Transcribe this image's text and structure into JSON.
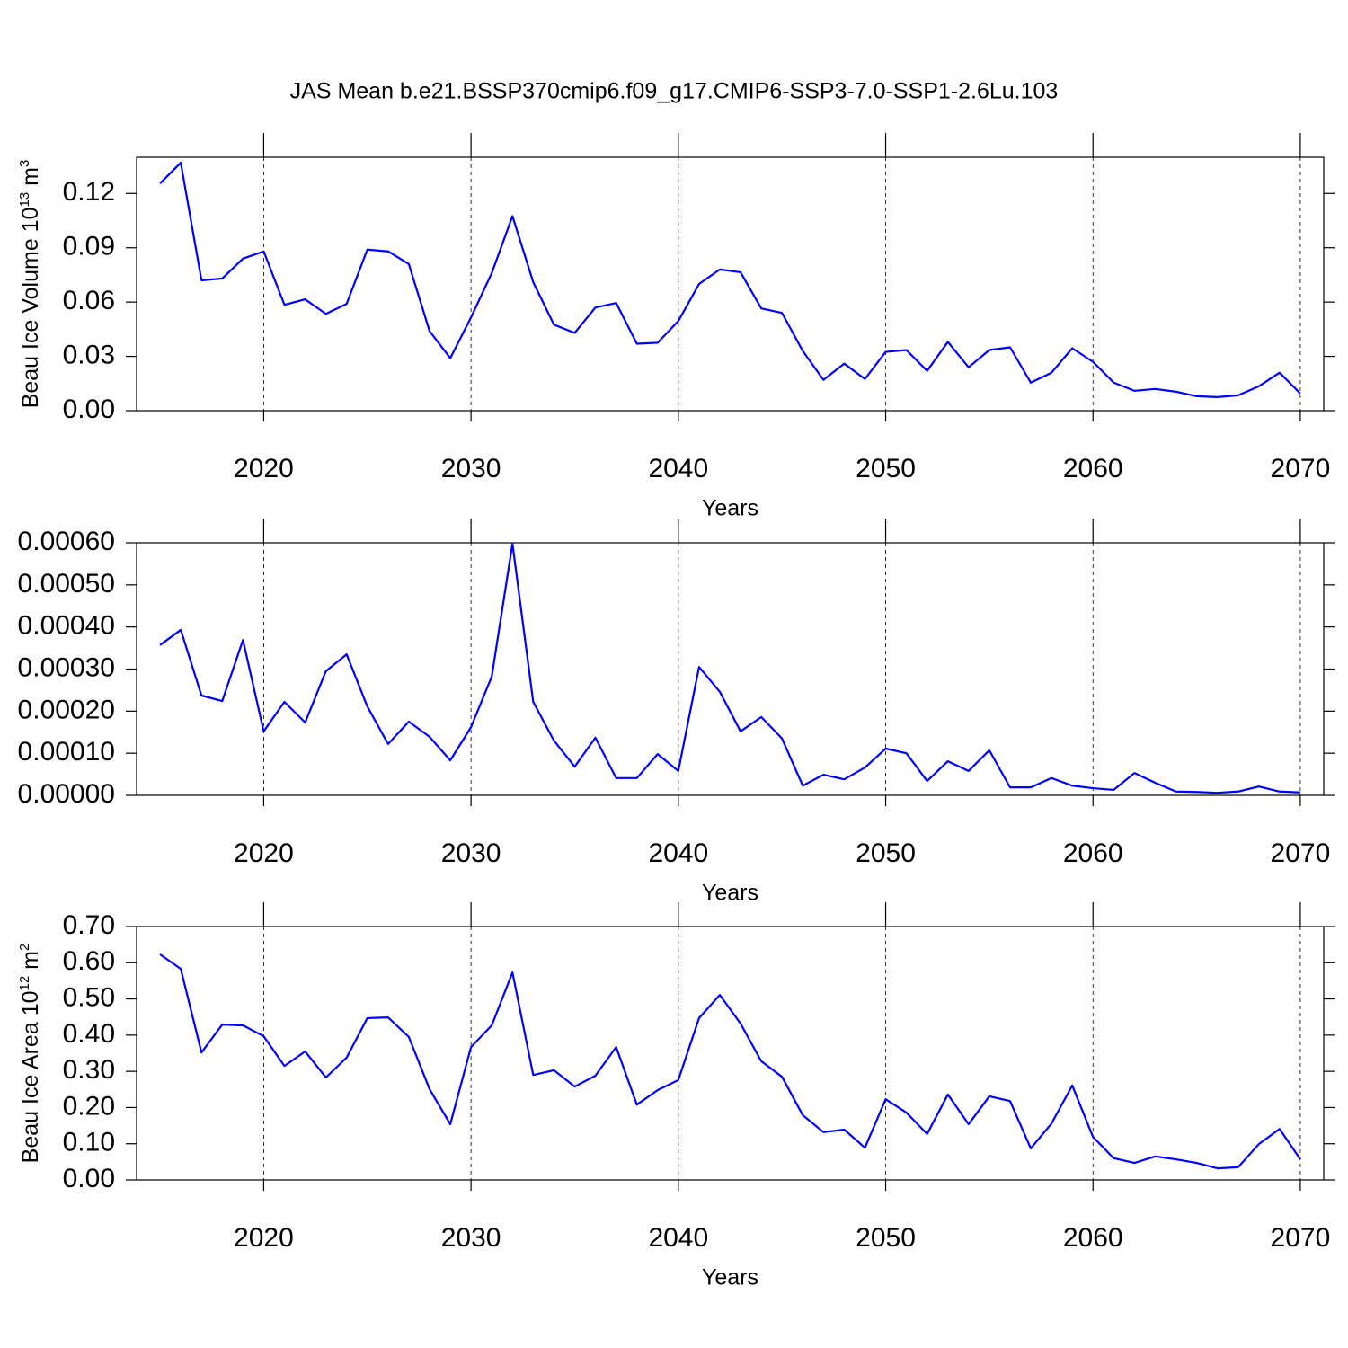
{
  "chart_data": [
    {
      "type": "line",
      "title": "JAS Mean b.e21.BSSP370cmip6.f09_g17.CMIP6-SSP3-7.0-SSP1-2.6Lu.103",
      "xlabel": "Years",
      "ylabel": {
        "base": "Beau Ice Volume 10",
        "exp": "13",
        "unit": " m",
        "unit_exp": "3"
      },
      "color": "#0000ff",
      "xgrid": true,
      "x": [
        2015,
        2016,
        2017,
        2018,
        2019,
        2020,
        2021,
        2022,
        2023,
        2024,
        2025,
        2026,
        2027,
        2028,
        2029,
        2030,
        2031,
        2032,
        2033,
        2034,
        2035,
        2036,
        2037,
        2038,
        2039,
        2040,
        2041,
        2042,
        2043,
        2044,
        2045,
        2046,
        2047,
        2048,
        2049,
        2050,
        2051,
        2052,
        2053,
        2054,
        2055,
        2056,
        2057,
        2058,
        2059,
        2060,
        2061,
        2062,
        2063,
        2064,
        2065,
        2066,
        2067,
        2068,
        2069,
        2070
      ],
      "values": [
        0.1255,
        0.137,
        0.072,
        0.073,
        0.084,
        0.088,
        0.0585,
        0.0615,
        0.0535,
        0.059,
        0.089,
        0.088,
        0.081,
        0.044,
        0.029,
        0.0515,
        0.076,
        0.1075,
        0.071,
        0.0475,
        0.043,
        0.057,
        0.0595,
        0.037,
        0.0375,
        0.0495,
        0.07,
        0.078,
        0.0765,
        0.0565,
        0.054,
        0.033,
        0.017,
        0.026,
        0.0175,
        0.0325,
        0.0335,
        0.022,
        0.038,
        0.024,
        0.0335,
        0.035,
        0.0155,
        0.021,
        0.0345,
        0.027,
        0.0155,
        0.011,
        0.012,
        0.0105,
        0.008,
        0.0075,
        0.0085,
        0.0135,
        0.021,
        0.0095
      ],
      "xlim": [
        2013.87,
        2071.13
      ],
      "xticks": [
        2020,
        2030,
        2040,
        2050,
        2060,
        2070
      ],
      "ylim": [
        0,
        0.14
      ],
      "yticks": [
        {
          "value": 0,
          "label": "0.00"
        },
        0.03,
        0.06,
        0.09,
        0.12
      ]
    },
    {
      "type": "line",
      "xlabel": "Years",
      "color": "#0000ff",
      "xgrid": true,
      "x": [
        2015,
        2016,
        2017,
        2018,
        2019,
        2020,
        2021,
        2022,
        2023,
        2024,
        2025,
        2026,
        2027,
        2028,
        2029,
        2030,
        2031,
        2032,
        2033,
        2034,
        2035,
        2036,
        2037,
        2038,
        2039,
        2040,
        2041,
        2042,
        2043,
        2044,
        2045,
        2046,
        2047,
        2048,
        2049,
        2050,
        2051,
        2052,
        2053,
        2054,
        2055,
        2056,
        2057,
        2058,
        2059,
        2060,
        2061,
        2062,
        2063,
        2064,
        2065,
        2066,
        2067,
        2068,
        2069,
        2070
      ],
      "values": [
        0.000357,
        0.000393,
        0.000237,
        0.000224,
        0.000369,
        0.000152,
        0.000222,
        0.000173,
        0.000295,
        0.000335,
        0.000211,
        0.000122,
        0.000175,
        0.000139,
        8.3e-05,
        0.000162,
        0.000282,
        0.000598,
        0.000222,
        0.00013,
        6.8e-05,
        0.000137,
        4.1e-05,
        4.1e-05,
        9.8e-05,
        5.8e-05,
        0.000305,
        0.000246,
        0.000152,
        0.000186,
        0.000135,
        2.3e-05,
        4.9e-05,
        3.8e-05,
        6.6e-05,
        0.000111,
        0.0001,
        3.4e-05,
        8.1e-05,
        5.8e-05,
        0.000107,
        1.9e-05,
        1.9e-05,
        4.1e-05,
        2.3e-05,
        1.7e-05,
        1.3e-05,
        5.3e-05,
        3e-05,
        9e-06,
        8e-06,
        6e-06,
        9e-06,
        2.1e-05,
        9e-06,
        7e-06
      ],
      "xlim": [
        2013.87,
        2071.13
      ],
      "xticks": [
        2020,
        2030,
        2040,
        2050,
        2060,
        2070
      ],
      "ylim": [
        0,
        0.0006
      ],
      "yticks": [
        {
          "value": 0,
          "label": "0.00000"
        },
        {
          "value": 0.0001,
          "label": "0.00010"
        },
        {
          "value": 0.0002,
          "label": "0.00020"
        },
        {
          "value": 0.0003,
          "label": "0.00030"
        },
        {
          "value": 0.0004,
          "label": "0.00040"
        },
        {
          "value": 0.0005,
          "label": "0.00050"
        },
        {
          "value": 0.0006,
          "label": "0.00060"
        }
      ]
    },
    {
      "type": "line",
      "xlabel": "Years",
      "ylabel": {
        "base": "Beau Ice Area 10",
        "exp": "12",
        "unit": " m",
        "unit_exp": "2"
      },
      "color": "#0000ff",
      "xgrid": true,
      "x": [
        2015,
        2016,
        2017,
        2018,
        2019,
        2020,
        2021,
        2022,
        2023,
        2024,
        2025,
        2026,
        2027,
        2028,
        2029,
        2030,
        2031,
        2032,
        2033,
        2034,
        2035,
        2036,
        2037,
        2038,
        2039,
        2040,
        2041,
        2042,
        2043,
        2044,
        2045,
        2046,
        2047,
        2048,
        2049,
        2050,
        2051,
        2052,
        2053,
        2054,
        2055,
        2056,
        2057,
        2058,
        2059,
        2060,
        2061,
        2062,
        2063,
        2064,
        2065,
        2066,
        2067,
        2068,
        2069,
        2070
      ],
      "values": [
        0.623,
        0.583,
        0.352,
        0.429,
        0.427,
        0.397,
        0.315,
        0.355,
        0.283,
        0.338,
        0.447,
        0.449,
        0.395,
        0.251,
        0.154,
        0.367,
        0.427,
        0.573,
        0.29,
        0.303,
        0.258,
        0.288,
        0.367,
        0.208,
        0.248,
        0.276,
        0.447,
        0.511,
        0.432,
        0.328,
        0.285,
        0.179,
        0.132,
        0.139,
        0.089,
        0.223,
        0.186,
        0.127,
        0.236,
        0.154,
        0.231,
        0.218,
        0.087,
        0.156,
        0.261,
        0.119,
        0.06,
        0.047,
        0.065,
        0.057,
        0.047,
        0.032,
        0.035,
        0.099,
        0.141,
        0.057
      ],
      "xlim": [
        2013.87,
        2071.13
      ],
      "xticks": [
        2020,
        2030,
        2040,
        2050,
        2060,
        2070
      ],
      "ylim": [
        0,
        0.7
      ],
      "yticks": [
        {
          "value": 0,
          "label": "0.00"
        },
        {
          "value": 0.1,
          "label": "0.10"
        },
        {
          "value": 0.2,
          "label": "0.20"
        },
        {
          "value": 0.3,
          "label": "0.30"
        },
        {
          "value": 0.4,
          "label": "0.40"
        },
        {
          "value": 0.5,
          "label": "0.50"
        },
        {
          "value": 0.6,
          "label": "0.60"
        },
        {
          "value": 0.7,
          "label": "0.70"
        }
      ]
    }
  ]
}
